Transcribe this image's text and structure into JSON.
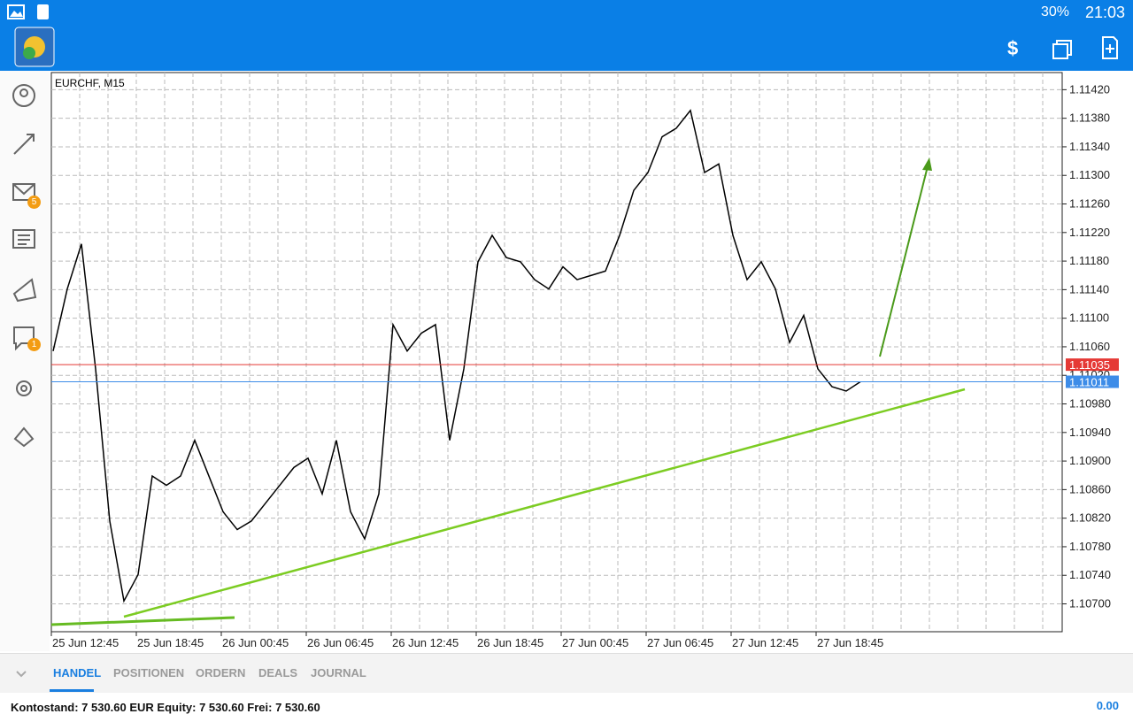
{
  "status_bar": {
    "battery": "30%",
    "time": "21:03"
  },
  "tabs": [
    "HANDEL",
    "POSITIONEN",
    "ORDERN",
    "DEALS",
    "JOURNAL"
  ],
  "badges": {
    "mail": "5",
    "chat": "1"
  },
  "footer": {
    "account": "Kontostand: 7 530.60 EUR  Equity: 7 530.60  Frei: 7 530.60",
    "profit": "0.00"
  },
  "chart_data": {
    "type": "line",
    "title": "EURCHF, M15",
    "color": "#000000",
    "categories": [
      "25 Jun 12:45",
      null,
      null,
      null,
      null,
      null,
      "25 Jun 18:45",
      null,
      null,
      null,
      null,
      null,
      "26 Jun 00:45",
      null,
      null,
      null,
      null,
      null,
      "26 Jun 06:45",
      null,
      null,
      null,
      null,
      null,
      "26 Jun 12:45",
      null,
      null,
      null,
      null,
      null,
      "26 Jun 18:45",
      null,
      null,
      null,
      null,
      null,
      "27 Jun 00:45",
      null,
      null,
      null,
      null,
      null,
      "27 Jun 06:45",
      null,
      null,
      null,
      null,
      null,
      "27 Jun 12:45",
      null,
      null,
      null,
      null,
      null,
      "27 Jun 18:45",
      null,
      null,
      null
    ],
    "values": [
      1.11054,
      1.11141,
      1.11204,
      1.11029,
      1.10816,
      1.10704,
      1.10741,
      1.10879,
      1.10866,
      1.10879,
      1.10929,
      1.10879,
      1.10829,
      1.10804,
      1.10816,
      1.10841,
      1.10866,
      1.10891,
      1.10904,
      1.10854,
      1.10929,
      1.10829,
      1.10791,
      1.10854,
      1.11091,
      1.11054,
      1.11079,
      1.11091,
      1.10929,
      1.11029,
      1.11179,
      1.11216,
      1.11185,
      1.11179,
      1.11154,
      1.11141,
      1.11172,
      1.11154,
      1.1116,
      1.11166,
      1.11216,
      1.11279,
      1.11304,
      1.11354,
      1.11366,
      1.11391,
      1.11304,
      1.11316,
      1.11216,
      1.11154,
      1.11179,
      1.11141,
      1.11066,
      1.11104,
      1.11029,
      1.11004,
      1.10998,
      1.11011
    ],
    "ylim": [
      1.10661,
      1.11444
    ],
    "yticks": [
      {
        "value": 1.107,
        "label": "1.10700"
      },
      {
        "value": 1.1074,
        "label": "1.10740"
      },
      {
        "value": 1.1078,
        "label": "1.10780"
      },
      {
        "value": 1.1082,
        "label": "1.10820"
      },
      {
        "value": 1.1086,
        "label": "1.10860"
      },
      {
        "value": 1.109,
        "label": "1.10900"
      },
      {
        "value": 1.1094,
        "label": "1.10940"
      },
      {
        "value": 1.1098,
        "label": "1.10980"
      },
      {
        "value": 1.1102,
        "label": "1.11020"
      },
      {
        "value": 1.1106,
        "label": "1.11060"
      },
      {
        "value": 1.111,
        "label": "1.11100"
      },
      {
        "value": 1.1114,
        "label": "1.11140"
      },
      {
        "value": 1.1118,
        "label": "1.11180"
      },
      {
        "value": 1.1122,
        "label": "1.11220"
      },
      {
        "value": 1.1126,
        "label": "1.11260"
      },
      {
        "value": 1.113,
        "label": "1.11300"
      },
      {
        "value": 1.1134,
        "label": "1.11340"
      },
      {
        "value": 1.1138,
        "label": "1.11380"
      },
      {
        "value": 1.1142,
        "label": "1.11420"
      }
    ],
    "grid": true,
    "price_lines": [
      {
        "value": 1.11035,
        "color": "#e53935"
      },
      {
        "value": 1.11011,
        "color": "#3d8ce8"
      }
    ]
  }
}
